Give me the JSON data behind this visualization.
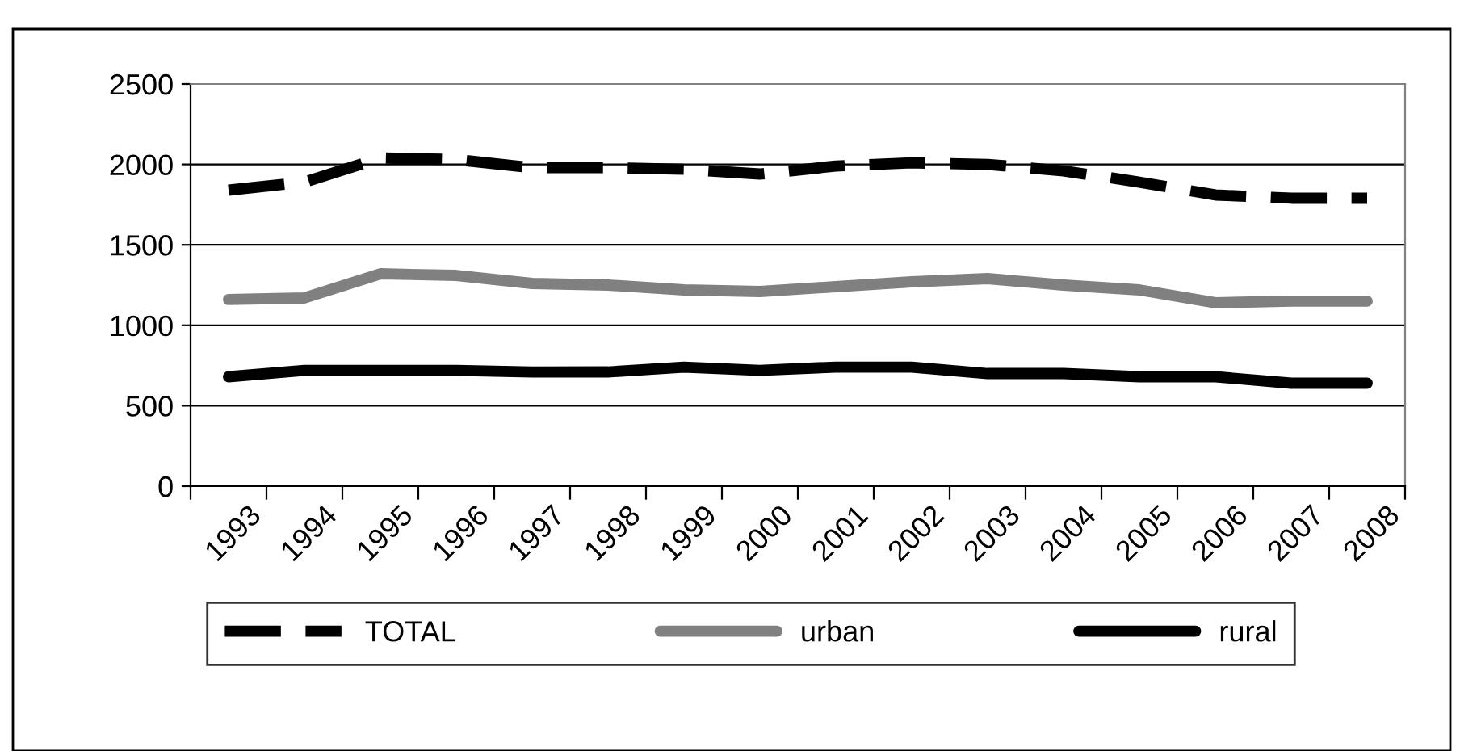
{
  "chart_data": {
    "type": "line",
    "categories": [
      "1993",
      "1994",
      "1995",
      "1996",
      "1997",
      "1998",
      "1999",
      "2000",
      "2001",
      "2002",
      "2003",
      "2004",
      "2005",
      "2006",
      "2007",
      "2008"
    ],
    "series": [
      {
        "name": "TOTAL",
        "color": "#000000",
        "line_style": "dashed",
        "values": [
          1840,
          1890,
          2040,
          2030,
          1980,
          1980,
          1970,
          1940,
          1990,
          2010,
          2000,
          1960,
          1890,
          1810,
          1790,
          1790
        ]
      },
      {
        "name": "urban",
        "color": "#808080",
        "line_style": "solid",
        "values": [
          1160,
          1170,
          1320,
          1310,
          1260,
          1250,
          1220,
          1210,
          1240,
          1270,
          1290,
          1250,
          1220,
          1140,
          1150,
          1150
        ]
      },
      {
        "name": "rural",
        "color": "#000000",
        "line_style": "solid",
        "values": [
          680,
          720,
          720,
          720,
          710,
          710,
          740,
          720,
          740,
          740,
          700,
          700,
          680,
          680,
          640,
          640
        ]
      }
    ],
    "ylim": [
      0,
      2500
    ],
    "yticks": [
      0,
      500,
      1000,
      1500,
      2000,
      2500
    ],
    "grid": "y",
    "legend": "bottom",
    "marker": "none"
  }
}
